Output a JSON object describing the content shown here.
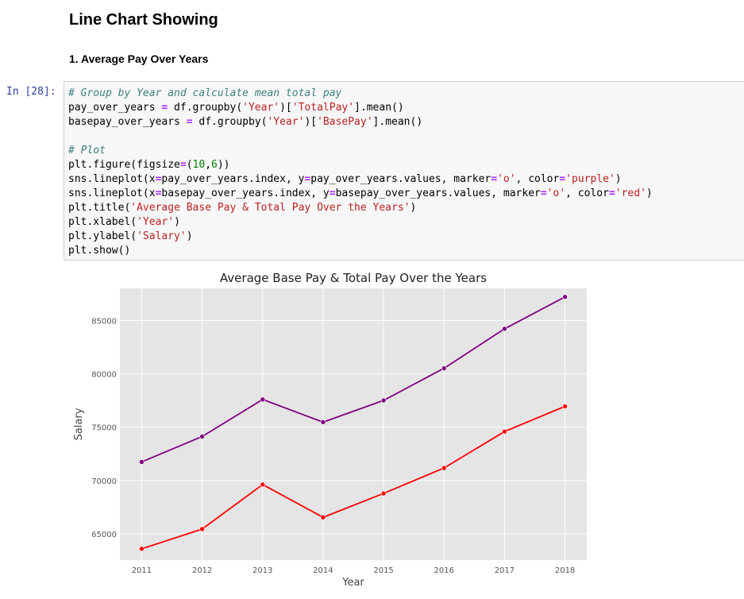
{
  "notebook": {
    "heading": "Line Chart Showing",
    "subheading": "1. Average Pay Over Years",
    "prompt": "In [28]:",
    "code_lines": [
      [
        {
          "t": "# Group by Year and calculate mean total pay",
          "c": "comment"
        }
      ],
      [
        {
          "t": "pay_over_years "
        },
        {
          "t": "=",
          "c": "op"
        },
        {
          "t": " df.groupby("
        },
        {
          "t": "'Year'",
          "c": "string"
        },
        {
          "t": ")["
        },
        {
          "t": "'TotalPay'",
          "c": "string"
        },
        {
          "t": "].mean()"
        }
      ],
      [
        {
          "t": "basepay_over_years "
        },
        {
          "t": "=",
          "c": "op"
        },
        {
          "t": " df.groupby("
        },
        {
          "t": "'Year'",
          "c": "string"
        },
        {
          "t": ")["
        },
        {
          "t": "'BasePay'",
          "c": "string"
        },
        {
          "t": "].mean()"
        }
      ],
      [],
      [
        {
          "t": "# Plot",
          "c": "comment"
        }
      ],
      [
        {
          "t": "plt.figure(figsize"
        },
        {
          "t": "=",
          "c": "op"
        },
        {
          "t": "("
        },
        {
          "t": "10",
          "c": "number"
        },
        {
          "t": ","
        },
        {
          "t": "6",
          "c": "number"
        },
        {
          "t": "))"
        }
      ],
      [
        {
          "t": "sns.lineplot(x"
        },
        {
          "t": "=",
          "c": "op"
        },
        {
          "t": "pay_over_years.index, y"
        },
        {
          "t": "=",
          "c": "op"
        },
        {
          "t": "pay_over_years.values, marker"
        },
        {
          "t": "=",
          "c": "op"
        },
        {
          "t": "'o'",
          "c": "string"
        },
        {
          "t": ", color"
        },
        {
          "t": "=",
          "c": "op"
        },
        {
          "t": "'purple'",
          "c": "string"
        },
        {
          "t": ")"
        }
      ],
      [
        {
          "t": "sns.lineplot(x"
        },
        {
          "t": "=",
          "c": "op"
        },
        {
          "t": "basepay_over_years.index, y"
        },
        {
          "t": "=",
          "c": "op"
        },
        {
          "t": "basepay_over_years.values, marker"
        },
        {
          "t": "=",
          "c": "op"
        },
        {
          "t": "'o'",
          "c": "string"
        },
        {
          "t": ", color"
        },
        {
          "t": "=",
          "c": "op"
        },
        {
          "t": "'red'",
          "c": "string"
        },
        {
          "t": ")"
        }
      ],
      [
        {
          "t": "plt.title("
        },
        {
          "t": "'Average Base Pay & Total Pay Over the Years'",
          "c": "string"
        },
        {
          "t": ")"
        }
      ],
      [
        {
          "t": "plt.xlabel("
        },
        {
          "t": "'Year'",
          "c": "string"
        },
        {
          "t": ")"
        }
      ],
      [
        {
          "t": "plt.ylabel("
        },
        {
          "t": "'Salary'",
          "c": "string"
        },
        {
          "t": ")"
        }
      ],
      [
        {
          "t": "plt.show()"
        }
      ]
    ]
  },
  "colors": {
    "plot_background": "#e5e5e5",
    "grid": "#ffffff",
    "total_pay_line": "#800080",
    "base_pay_line": "#ff0000",
    "prompt": "#303f9f"
  },
  "chart_data": {
    "type": "line",
    "title": "Average Base Pay & Total Pay Over the Years",
    "xlabel": "Year",
    "ylabel": "Salary",
    "x": [
      2011,
      2012,
      2013,
      2014,
      2015,
      2016,
      2017,
      2018
    ],
    "x_ticks": [
      "2011",
      "2012",
      "2013",
      "2014",
      "2015",
      "2016",
      "2017",
      "2018"
    ],
    "y_ticks": [
      65000,
      70000,
      75000,
      80000,
      85000
    ],
    "y_tick_labels": [
      "65000",
      "70000",
      "75000",
      "80000",
      "85000"
    ],
    "xlim": [
      2010.64,
      2018.36
    ],
    "ylim": [
      62530,
      88020
    ],
    "grid": true,
    "legend": "none",
    "series": [
      {
        "color": "purple",
        "marker": "o",
        "values": [
          71740,
          74120,
          77600,
          75470,
          77510,
          80520,
          84230,
          87220
        ]
      },
      {
        "color": "red",
        "marker": "o",
        "values": [
          63590,
          65440,
          69620,
          66540,
          68780,
          71170,
          74590,
          76950
        ]
      }
    ]
  }
}
